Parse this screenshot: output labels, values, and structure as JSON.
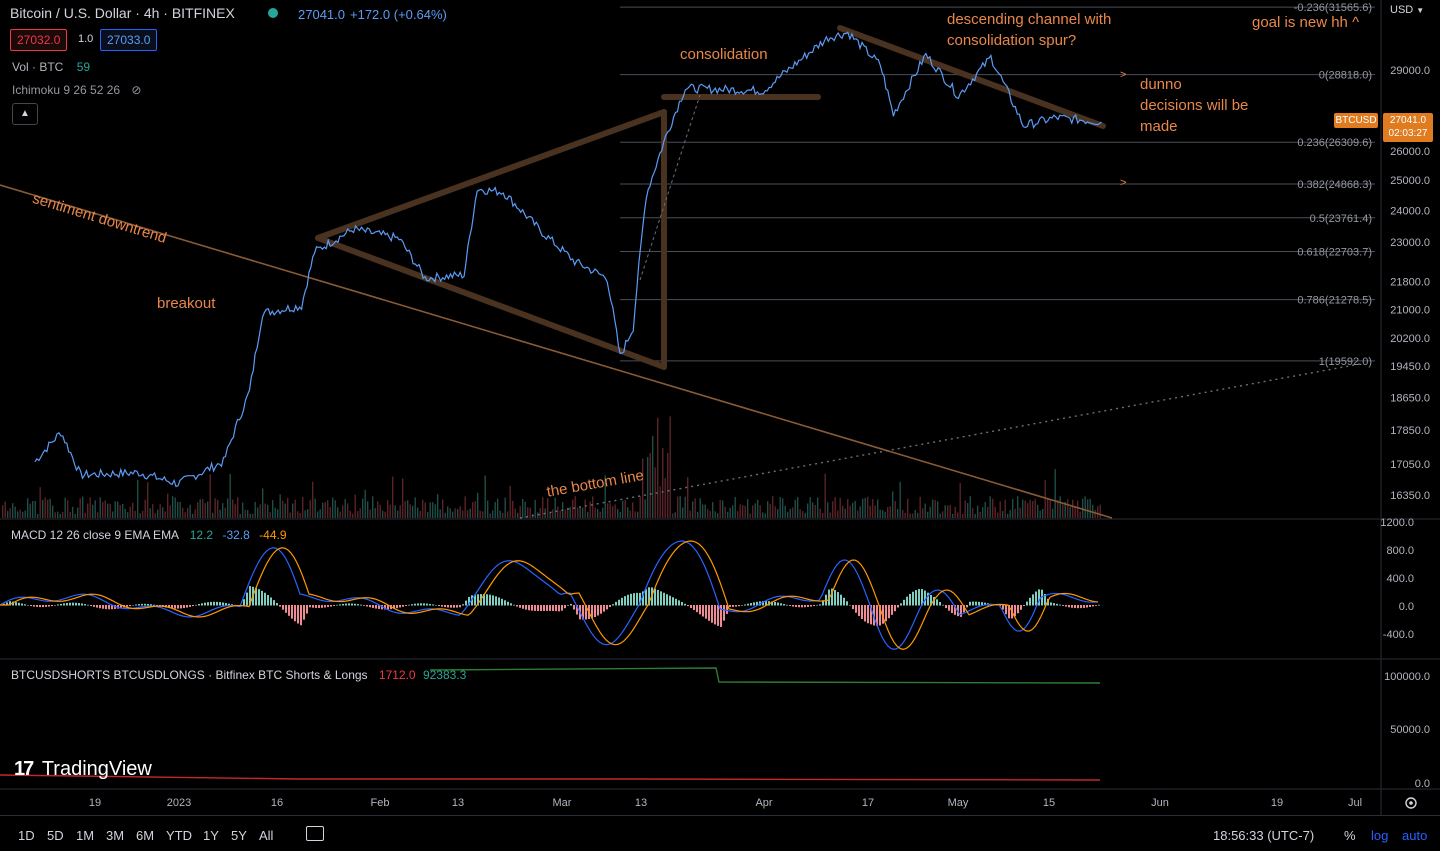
{
  "header": {
    "symbol": "Bitcoin / U.S. Dollar · 4h · BITFINEX",
    "quote": "27041.0",
    "change": "+172.0 (+0.64%)",
    "bid": "27032.0",
    "spread": "1.0",
    "ask": "27033.0",
    "vol_label": "Vol · BTC",
    "vol_value": "59",
    "ichimoku": "Ichimoku 9 26 52 26",
    "currency": "USD"
  },
  "price_tag": {
    "symbol": "BTCUSD",
    "price": "27041.0",
    "countdown": "02:03:27"
  },
  "annotations": {
    "sentiment": "sentiment downtrend",
    "breakout": "breakout",
    "consolidation": "consolidation",
    "channel_line1": "descending channel with",
    "channel_line2": "consolidation spur?",
    "goal": "goal is new hh ^",
    "dunno1": "dunno",
    "dunno2": "decisions will be",
    "dunno3": "made",
    "bottom_line": "the bottom line",
    "arrow": ">"
  },
  "macd": {
    "label": "MACD 12 26 close 9 EMA EMA",
    "hist": "12.2",
    "macd": "-32.8",
    "signal": "-44.9"
  },
  "shorts_longs": {
    "label": "BTCUSDSHORTS BTCUSDLONGS · Bitfinex BTC Shorts & Longs",
    "shorts": "1712.0",
    "longs": "92383.3"
  },
  "logo": "TradingView",
  "bottom": {
    "timeframes": [
      "1D",
      "5D",
      "1M",
      "3M",
      "6M",
      "YTD",
      "1Y",
      "5Y",
      "All"
    ],
    "clock": "18:56:33 (UTC-7)",
    "percent": "%",
    "log": "log",
    "auto": "auto"
  },
  "colors": {
    "price_line": "#5b9cf6",
    "accent": "#e9874a",
    "drawing": "#5a3a22",
    "shorts": "#c62828",
    "longs": "#2e7d32"
  },
  "chart_data": {
    "type": "line",
    "x_ticks": [
      "19",
      "2023",
      "16",
      "Feb",
      "13",
      "Mar",
      "13",
      "Apr",
      "17",
      "May",
      "15",
      "Jun",
      "19",
      "Jul"
    ],
    "y_ticks": [
      "29000.0",
      "26000.0",
      "25000.0",
      "24000.0",
      "23000.0",
      "21800.0",
      "21000.0",
      "20200.0",
      "19450.0",
      "18650.0",
      "17850.0",
      "17050.0",
      "16350.0"
    ],
    "fib_levels": [
      {
        "label": "-0.236(31565.6)",
        "price": 31565.6
      },
      {
        "label": "0(28818.0)",
        "price": 28818.0
      },
      {
        "label": "0.236(26309.6)",
        "price": 26309.6
      },
      {
        "label": "0.382(24868.3)",
        "price": 24868.3
      },
      {
        "label": "0.5(23761.4)",
        "price": 23761.4
      },
      {
        "label": "0.618(22703.7)",
        "price": 22703.7
      },
      {
        "label": "0.786(21278.5)",
        "price": 21278.5
      },
      {
        "label": "1(19592.0)",
        "price": 19592.0
      }
    ],
    "price_path_anchors": [
      [
        "Dec 10",
        17100
      ],
      [
        "Dec 14",
        17800
      ],
      [
        "Dec 17",
        16800
      ],
      [
        "Dec 26",
        16850
      ],
      [
        "Jan 1",
        16600
      ],
      [
        "Jan 8",
        17100
      ],
      [
        "Jan 12",
        18800
      ],
      [
        "Jan 14",
        20900
      ],
      [
        "Jan 20",
        21100
      ],
      [
        "Jan 22",
        22700
      ],
      [
        "Jan 28",
        23400
      ],
      [
        "Feb 4",
        23100
      ],
      [
        "Feb 8",
        21900
      ],
      [
        "Feb 14",
        22000
      ],
      [
        "Feb 16",
        24700
      ],
      [
        "Feb 20",
        24600
      ],
      [
        "Feb 26",
        23300
      ],
      [
        "Mar 3",
        22400
      ],
      [
        "Mar 8",
        21900
      ],
      [
        "Mar 10",
        19700
      ],
      [
        "Mar 12",
        20500
      ],
      [
        "Mar 14",
        24500
      ],
      [
        "Mar 17",
        26500
      ],
      [
        "Mar 20",
        28300
      ],
      [
        "Apr 1",
        28200
      ],
      [
        "Apr 11",
        30300
      ],
      [
        "Apr 14",
        30500
      ],
      [
        "Apr 19",
        29200
      ],
      [
        "Apr 21",
        27300
      ],
      [
        "Apr 26",
        29600
      ],
      [
        "May 1",
        28000
      ],
      [
        "May 6",
        29500
      ],
      [
        "May 11",
        26900
      ],
      [
        "May 16",
        27200
      ],
      [
        "May 23",
        27041
      ]
    ],
    "macd_y_ticks": [
      "1200.0",
      "800.0",
      "400.0",
      "0.0",
      "-400.0"
    ],
    "shorts_longs_y_ticks": [
      "100000.0",
      "50000.0",
      "0.0"
    ]
  }
}
